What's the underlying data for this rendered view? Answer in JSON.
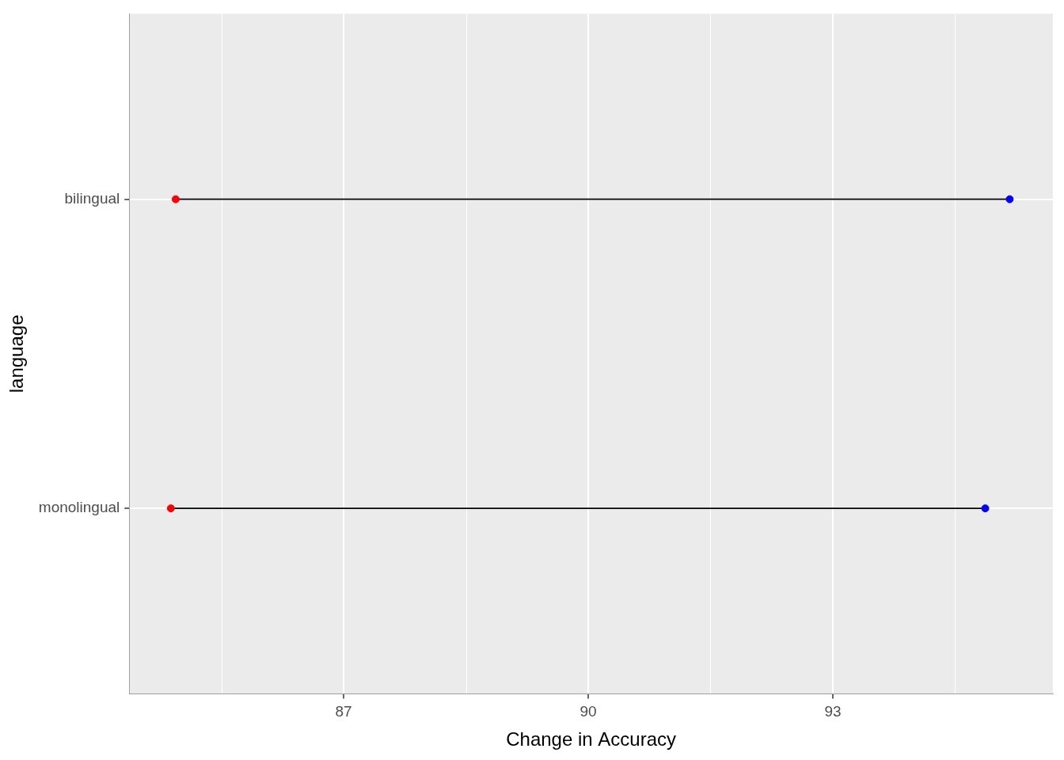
{
  "chart_data": {
    "type": "dumbbell",
    "xlabel": "Change in Accuracy",
    "ylabel": "language",
    "categories": [
      "bilingual",
      "monolingual"
    ],
    "series": [
      {
        "color": "red",
        "values": [
          84.94,
          84.88
        ]
      },
      {
        "color": "blue",
        "values": [
          95.17,
          94.87
        ]
      }
    ],
    "xlim": [
      84.37,
      95.7
    ],
    "xticks": [
      87,
      90,
      93
    ],
    "grid": true
  }
}
